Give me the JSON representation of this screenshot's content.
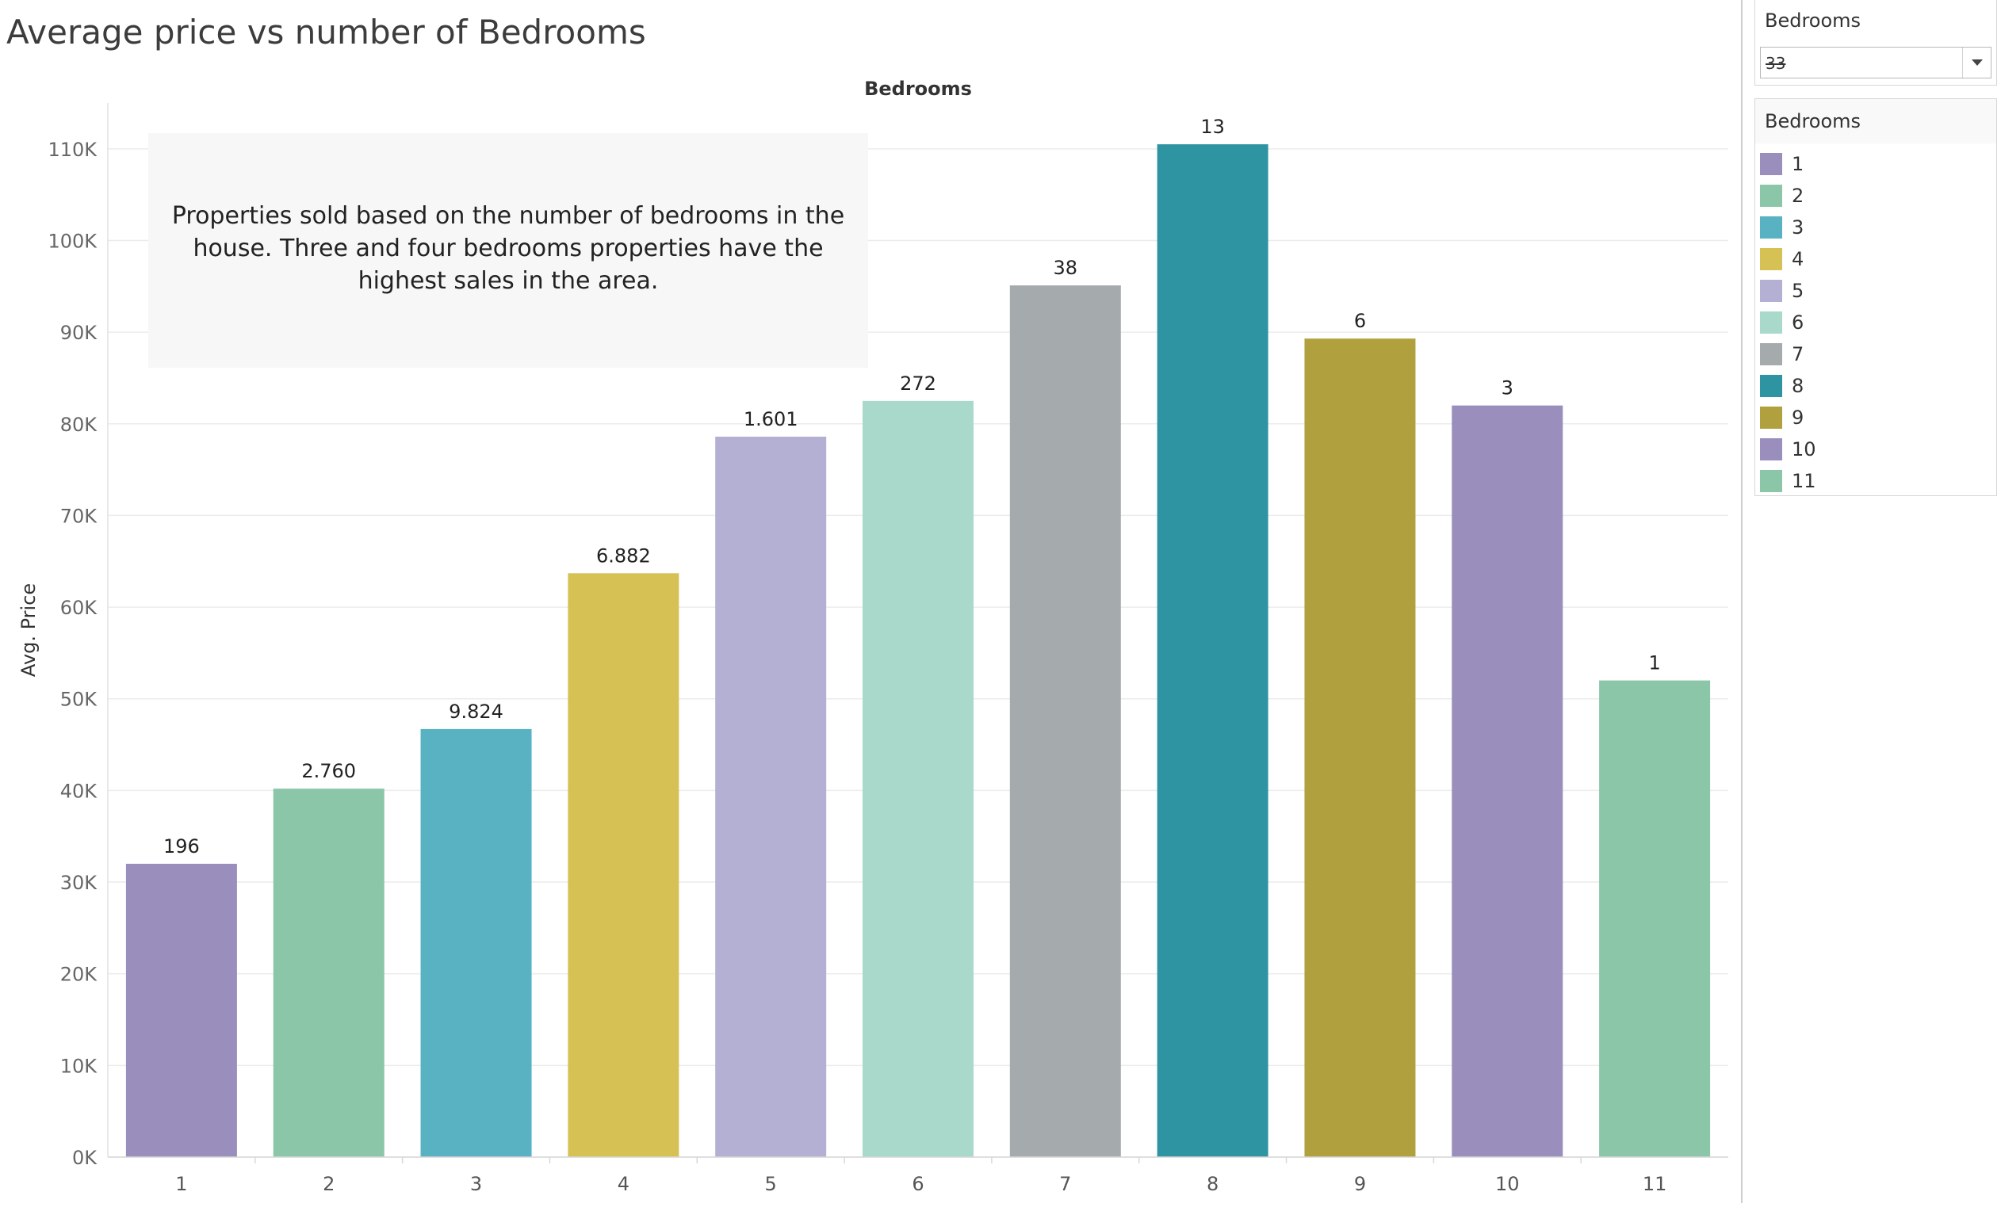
{
  "page": {
    "title": "Average price vs number of Bedrooms"
  },
  "annotation": {
    "text": "Properties sold based on the number of bedrooms in the house. Three and four bedrooms properties have the highest sales in the area."
  },
  "filter": {
    "title": "Bedrooms",
    "value": "33"
  },
  "legend": {
    "title": "Bedrooms",
    "items": [
      {
        "label": "1",
        "color": "#9a8fbc"
      },
      {
        "label": "2",
        "color": "#8bc6a9"
      },
      {
        "label": "3",
        "color": "#59b2c2"
      },
      {
        "label": "4",
        "color": "#d5c154"
      },
      {
        "label": "5",
        "color": "#b4b0d4"
      },
      {
        "label": "6",
        "color": "#a8d9cb"
      },
      {
        "label": "7",
        "color": "#a5abad"
      },
      {
        "label": "8",
        "color": "#2f94a2"
      },
      {
        "label": "9",
        "color": "#b1a03e"
      },
      {
        "label": "10",
        "color": "#9a8fbc"
      },
      {
        "label": "11",
        "color": "#8bc6a9"
      }
    ]
  },
  "chart_data": {
    "type": "bar",
    "title": "Average price vs number of Bedrooms",
    "column_header": "Bedrooms",
    "xlabel": "",
    "ylabel": "Avg. Price",
    "ylim": [
      0,
      115000
    ],
    "yticks": [
      0,
      10000,
      20000,
      30000,
      40000,
      50000,
      60000,
      70000,
      80000,
      90000,
      100000,
      110000
    ],
    "ytick_labels": [
      "0K",
      "10K",
      "20K",
      "30K",
      "40K",
      "50K",
      "60K",
      "70K",
      "80K",
      "90K",
      "100K",
      "110K"
    ],
    "grid": true,
    "categories": [
      "1",
      "2",
      "3",
      "4",
      "5",
      "6",
      "7",
      "8",
      "9",
      "10",
      "11"
    ],
    "values": [
      32000,
      40200,
      46700,
      63700,
      78600,
      82500,
      95100,
      110500,
      89300,
      82000,
      52000
    ],
    "labels": [
      "196",
      "2.760",
      "9.824",
      "6.882",
      "1.601",
      "272",
      "38",
      "13",
      "6",
      "3",
      "1"
    ],
    "colors": [
      "#9a8fbc",
      "#8bc6a9",
      "#59b2c2",
      "#d5c154",
      "#b4b0d4",
      "#a8d9cb",
      "#a5abad",
      "#2f94a2",
      "#b1a03e",
      "#9a8fbc",
      "#8bc6a9"
    ],
    "legend_position": "right"
  }
}
